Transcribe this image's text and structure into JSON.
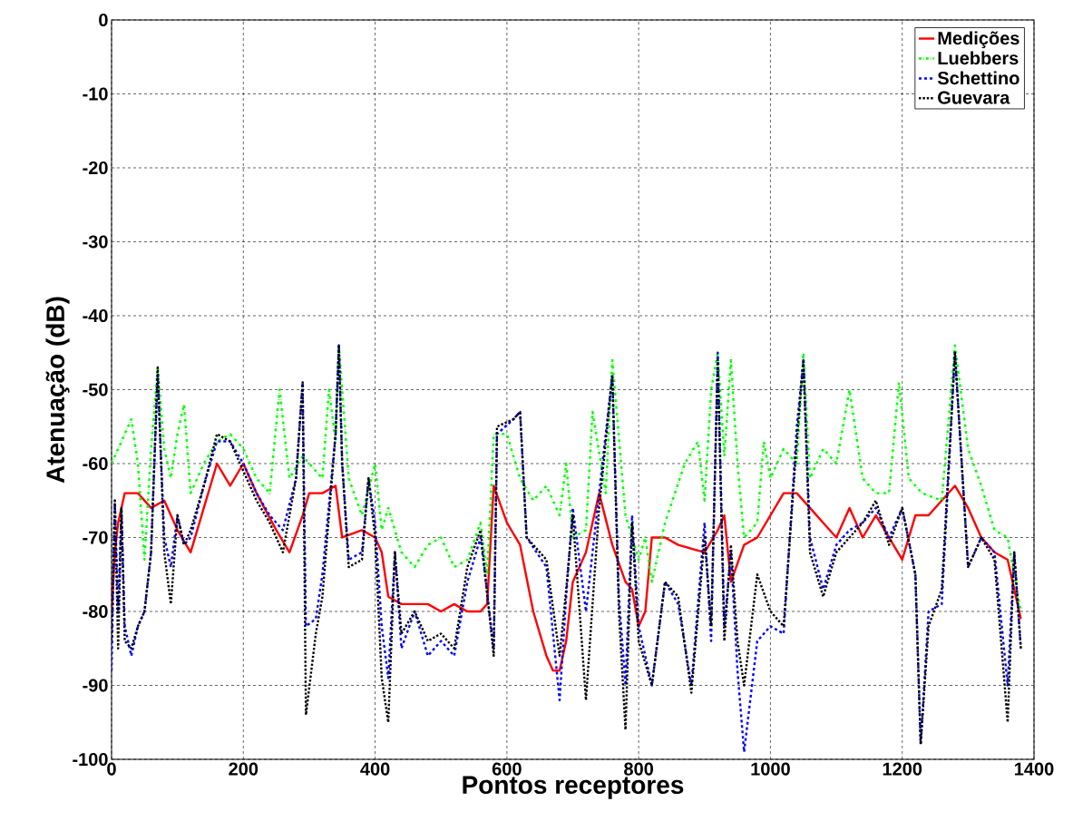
{
  "chart_data": {
    "type": "line",
    "xlabel": "Pontos receptores",
    "ylabel": "Atenuação (dB)",
    "xlim": [
      0,
      1400
    ],
    "ylim": [
      -100,
      0
    ],
    "xticks": [
      0,
      200,
      400,
      600,
      800,
      1000,
      1200,
      1400
    ],
    "yticks": [
      -100,
      -90,
      -80,
      -70,
      -60,
      -50,
      -40,
      -30,
      -20,
      -10,
      0
    ],
    "grid": true,
    "legend": "top right",
    "series": [
      {
        "name": "Medições",
        "color": "#ff0000",
        "line_style": "solid",
        "x": [
          0,
          5,
          10,
          20,
          40,
          60,
          80,
          100,
          120,
          140,
          160,
          180,
          200,
          220,
          250,
          270,
          290,
          300,
          320,
          340,
          350,
          380,
          400,
          410,
          420,
          440,
          480,
          500,
          520,
          540,
          560,
          570,
          580,
          600,
          620,
          640,
          660,
          670,
          680,
          690,
          700,
          720,
          740,
          760,
          780,
          790,
          800,
          810,
          820,
          840,
          860,
          900,
          920,
          930,
          940,
          960,
          980,
          1000,
          1020,
          1040,
          1060,
          1080,
          1100,
          1120,
          1140,
          1160,
          1180,
          1200,
          1220,
          1240,
          1260,
          1280,
          1300,
          1320,
          1340,
          1360,
          1380
        ],
        "values": [
          -80,
          -72,
          -68,
          -64,
          -64,
          -66,
          -65,
          -69,
          -72,
          -66,
          -60,
          -63,
          -60,
          -64,
          -69,
          -72,
          -67,
          -64,
          -64,
          -63,
          -70,
          -69,
          -70,
          -72,
          -78,
          -79,
          -79,
          -80,
          -79,
          -80,
          -80,
          -79,
          -63,
          -68,
          -71,
          -80,
          -86,
          -88,
          -88,
          -84,
          -76,
          -72,
          -64,
          -71,
          -76,
          -77,
          -82,
          -80,
          -70,
          -70,
          -71,
          -72,
          -69,
          -67,
          -76,
          -71,
          -70,
          -67,
          -64,
          -64,
          -66,
          -68,
          -70,
          -66,
          -70,
          -67,
          -70,
          -73,
          -67,
          -67,
          -65,
          -63,
          -66,
          -70,
          -72,
          -73,
          -81
        ]
      },
      {
        "name": "Luebbers",
        "color": "#00ff00",
        "line_style": "dashdot",
        "x": [
          0,
          10,
          20,
          30,
          40,
          50,
          60,
          70,
          80,
          90,
          100,
          110,
          120,
          140,
          160,
          180,
          200,
          220,
          240,
          255,
          270,
          290,
          300,
          320,
          330,
          340,
          345,
          360,
          380,
          400,
          410,
          420,
          440,
          460,
          480,
          500,
          520,
          540,
          560,
          570,
          580,
          600,
          620,
          640,
          660,
          680,
          690,
          700,
          720,
          730,
          750,
          760,
          780,
          800,
          810,
          820,
          840,
          870,
          890,
          900,
          910,
          920,
          930,
          940,
          950,
          960,
          980,
          990,
          1000,
          1020,
          1040,
          1050,
          1060,
          1080,
          1100,
          1120,
          1140,
          1160,
          1180,
          1195,
          1210,
          1230,
          1260,
          1280,
          1300,
          1320,
          1340,
          1360,
          1380
        ],
        "values": [
          -60,
          -58,
          -56,
          -54,
          -60,
          -73,
          -58,
          -47,
          -58,
          -62,
          -56,
          -52,
          -64,
          -60,
          -57,
          -56,
          -58,
          -62,
          -64,
          -50,
          -62,
          -59,
          -60,
          -62,
          -50,
          -57,
          -44,
          -62,
          -67,
          -60,
          -69,
          -66,
          -72,
          -74,
          -71,
          -70,
          -74,
          -73,
          -68,
          -75,
          -56,
          -56,
          -62,
          -65,
          -63,
          -67,
          -60,
          -70,
          -69,
          -53,
          -64,
          -46,
          -67,
          -73,
          -70,
          -76,
          -68,
          -60,
          -57,
          -65,
          -50,
          -45,
          -59,
          -46,
          -60,
          -70,
          -68,
          -57,
          -62,
          -58,
          -60,
          -45,
          -62,
          -58,
          -60,
          -50,
          -62,
          -64,
          -64,
          -49,
          -62,
          -64,
          -65,
          -44,
          -58,
          -63,
          -69,
          -70,
          -80
        ]
      },
      {
        "name": "Schettino",
        "color": "#0000ff",
        "line_style": "dashed",
        "x": [
          0,
          5,
          10,
          15,
          20,
          30,
          40,
          50,
          60,
          70,
          80,
          90,
          100,
          110,
          120,
          140,
          160,
          180,
          200,
          220,
          240,
          260,
          280,
          290,
          295,
          310,
          320,
          340,
          345,
          350,
          360,
          380,
          390,
          400,
          410,
          420,
          430,
          440,
          460,
          480,
          500,
          520,
          540,
          560,
          580,
          585,
          610,
          620,
          630,
          660,
          680,
          690,
          700,
          720,
          740,
          760,
          770,
          780,
          790,
          800,
          820,
          840,
          860,
          880,
          900,
          910,
          920,
          930,
          940,
          950,
          960,
          980,
          1000,
          1020,
          1040,
          1050,
          1060,
          1080,
          1100,
          1120,
          1140,
          1160,
          1180,
          1200,
          1220,
          1228,
          1240,
          1260,
          1280,
          1300,
          1320,
          1340,
          1360,
          1370,
          1380
        ],
        "values": [
          -88,
          -65,
          -80,
          -66,
          -82,
          -86,
          -82,
          -80,
          -72,
          -48,
          -70,
          -74,
          -67,
          -71,
          -70,
          -63,
          -57,
          -57,
          -60,
          -64,
          -67,
          -69,
          -62,
          -49,
          -82,
          -81,
          -75,
          -56,
          -44,
          -60,
          -73,
          -72,
          -62,
          -68,
          -82,
          -89,
          -72,
          -85,
          -80,
          -86,
          -84,
          -86,
          -76,
          -70,
          -85,
          -56,
          -54,
          -53,
          -70,
          -74,
          -92,
          -78,
          -66,
          -80,
          -64,
          -48,
          -78,
          -90,
          -67,
          -82,
          -90,
          -76,
          -79,
          -90,
          -68,
          -84,
          -45,
          -82,
          -72,
          -88,
          -99,
          -84,
          -82,
          -83,
          -55,
          -46,
          -70,
          -77,
          -71,
          -69,
          -68,
          -66,
          -70,
          -66,
          -75,
          -98,
          -80,
          -79,
          -45,
          -74,
          -70,
          -72,
          -90,
          -72,
          -85
        ]
      },
      {
        "name": "Guevara",
        "color": "#000000",
        "line_style": "dotted",
        "x": [
          0,
          5,
          10,
          15,
          20,
          30,
          40,
          50,
          60,
          70,
          80,
          90,
          100,
          110,
          120,
          140,
          160,
          180,
          200,
          220,
          240,
          260,
          280,
          290,
          295,
          310,
          320,
          340,
          345,
          350,
          360,
          380,
          390,
          400,
          410,
          420,
          430,
          440,
          460,
          480,
          500,
          520,
          540,
          560,
          580,
          585,
          610,
          620,
          630,
          660,
          680,
          690,
          700,
          720,
          740,
          760,
          770,
          780,
          790,
          800,
          820,
          840,
          860,
          880,
          900,
          910,
          920,
          930,
          940,
          950,
          960,
          980,
          1000,
          1020,
          1040,
          1050,
          1060,
          1080,
          1100,
          1120,
          1140,
          1160,
          1180,
          1200,
          1220,
          1228,
          1240,
          1260,
          1280,
          1300,
          1320,
          1340,
          1360,
          1370,
          1380
        ],
        "values": [
          -84,
          -65,
          -85,
          -66,
          -84,
          -85,
          -82,
          -80,
          -72,
          -47,
          -72,
          -79,
          -67,
          -71,
          -69,
          -63,
          -56,
          -57,
          -61,
          -65,
          -68,
          -72,
          -62,
          -49,
          -94,
          -83,
          -78,
          -56,
          -44,
          -60,
          -74,
          -73,
          -62,
          -70,
          -89,
          -95,
          -72,
          -83,
          -80,
          -84,
          -83,
          -85,
          -74,
          -69,
          -86,
          -55,
          -54,
          -53,
          -70,
          -73,
          -86,
          -77,
          -67,
          -92,
          -66,
          -48,
          -80,
          -96,
          -68,
          -84,
          -90,
          -76,
          -78,
          -91,
          -70,
          -82,
          -46,
          -84,
          -71,
          -84,
          -90,
          -75,
          -80,
          -82,
          -57,
          -46,
          -72,
          -78,
          -72,
          -70,
          -68,
          -65,
          -71,
          -66,
          -75,
          -98,
          -82,
          -77,
          -45,
          -74,
          -70,
          -73,
          -95,
          -72,
          -85
        ]
      }
    ]
  }
}
